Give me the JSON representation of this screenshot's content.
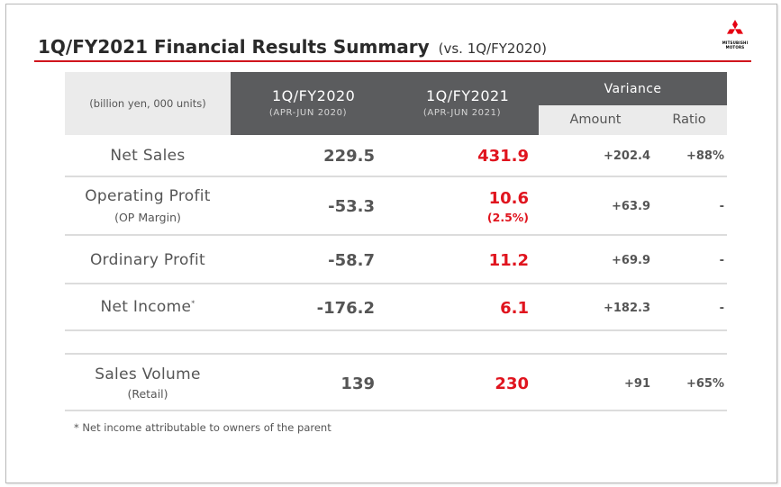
{
  "title": "1Q/FY2021 Financial Results Summary",
  "title_sub": "(vs. 1Q/FY2020)",
  "logo": {
    "line1": "MITSUBISHI",
    "line2": "MOTORS",
    "color": "#e60012"
  },
  "colors": {
    "accent": "#e0141e",
    "header_dark": "#5b5c5e",
    "header_light": "#ebebeb"
  },
  "table": {
    "unit_label": "(billion yen, 000 units)",
    "col_fy2020": {
      "title": "1Q/FY2020",
      "sub": "(APR-JUN 2020)"
    },
    "col_fy2021": {
      "title": "1Q/FY2021",
      "sub": "(APR-JUN 2021)"
    },
    "variance": {
      "title": "Variance",
      "amount": "Amount",
      "ratio": "Ratio"
    },
    "rows": [
      {
        "label": "Net Sales",
        "sublabel": "",
        "fy2020": "229.5",
        "fy2021": "431.9",
        "fy2021_sub": "",
        "amount": "+202.4",
        "ratio": "+88%"
      },
      {
        "label": "Operating Profit",
        "sublabel": "(OP Margin)",
        "fy2020": "-53.3",
        "fy2021": "10.6",
        "fy2021_sub": "(2.5%)",
        "amount": "+63.9",
        "ratio": "-"
      },
      {
        "label": "Ordinary Profit",
        "sublabel": "",
        "fy2020": "-58.7",
        "fy2021": "11.2",
        "fy2021_sub": "",
        "amount": "+69.9",
        "ratio": "-"
      },
      {
        "label": "Net Income",
        "label_mark": "*",
        "sublabel": "",
        "fy2020": "-176.2",
        "fy2021": "6.1",
        "fy2021_sub": "",
        "amount": "+182.3",
        "ratio": "-"
      },
      {
        "label": "Sales Volume",
        "sublabel": "(Retail)",
        "fy2020": "139",
        "fy2021": "230",
        "fy2021_sub": "",
        "amount": "+91",
        "ratio": "+65%"
      }
    ]
  },
  "footnote": "* Net income attributable to owners of the parent"
}
